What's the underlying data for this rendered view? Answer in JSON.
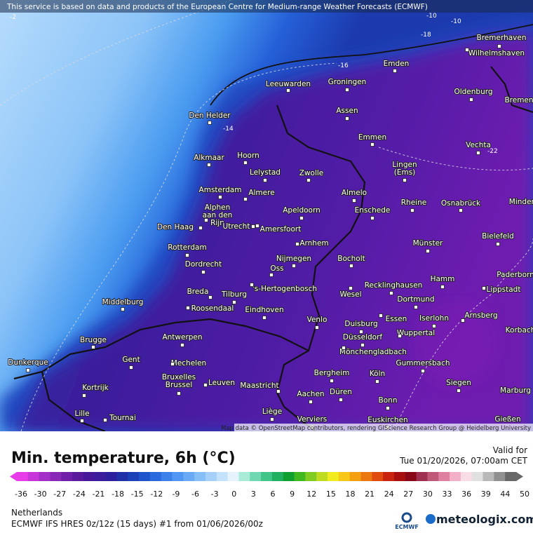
{
  "header": {
    "attribution": "This service is based on data and products of the European Centre for Medium-range Weather Forecasts (ECMWF)"
  },
  "map": {
    "credit": "Map data © OpenStreetMap contributors, rendering GIScience Research Group @ Heidelberg University",
    "contour_labels": [
      -2,
      -10,
      -10,
      -18,
      -16,
      -14,
      -22
    ],
    "cities": [
      {
        "lines": [
          "Bremerhaven"
        ]
      },
      {
        "lines": [
          "Wilhelmshaven"
        ]
      },
      {
        "lines": [
          "Emden"
        ]
      },
      {
        "lines": [
          "Oldenburg"
        ]
      },
      {
        "lines": [
          "Bremen"
        ]
      },
      {
        "lines": [
          "Leeuwarden"
        ]
      },
      {
        "lines": [
          "Groningen"
        ]
      },
      {
        "lines": [
          "Den Helder"
        ]
      },
      {
        "lines": [
          "Assen"
        ]
      },
      {
        "lines": [
          "Emmen"
        ]
      },
      {
        "lines": [
          "Vechta"
        ]
      },
      {
        "lines": [
          "Alkmaar"
        ]
      },
      {
        "lines": [
          "Hoorn"
        ]
      },
      {
        "lines": [
          "Lelystad"
        ]
      },
      {
        "lines": [
          "Zwolle"
        ]
      },
      {
        "lines": [
          "Lingen",
          "(Ems)"
        ]
      },
      {
        "lines": [
          "Amsterdam"
        ]
      },
      {
        "lines": [
          "Almere"
        ]
      },
      {
        "lines": [
          "Almelo"
        ]
      },
      {
        "lines": [
          "Rheine"
        ]
      },
      {
        "lines": [
          "Osnabrück"
        ]
      },
      {
        "lines": [
          "Minden"
        ]
      },
      {
        "lines": [
          "Alphen",
          "aan den",
          "Rijn"
        ]
      },
      {
        "lines": [
          "Apeldoorn"
        ]
      },
      {
        "lines": [
          "Enschede"
        ]
      },
      {
        "lines": [
          "Den Haag"
        ]
      },
      {
        "lines": [
          "Utrecht"
        ]
      },
      {
        "lines": [
          "Amersfoort"
        ]
      },
      {
        "lines": [
          "Bielefeld"
        ]
      },
      {
        "lines": [
          "Arnhem"
        ]
      },
      {
        "lines": [
          "Münster"
        ]
      },
      {
        "lines": [
          "Rotterdam"
        ]
      },
      {
        "lines": [
          "Nijmegen"
        ]
      },
      {
        "lines": [
          "Bocholt"
        ]
      },
      {
        "lines": [
          "Dordrecht"
        ]
      },
      {
        "lines": [
          "Oss"
        ]
      },
      {
        "lines": [
          "Paderborn"
        ]
      },
      {
        "lines": [
          "Hamm"
        ]
      },
      {
        "lines": [
          "Breda"
        ]
      },
      {
        "lines": [
          "'s-Hertogenbosch"
        ]
      },
      {
        "lines": [
          "Recklinghausen"
        ]
      },
      {
        "lines": [
          "Lippstadt"
        ]
      },
      {
        "lines": [
          "Tilburg"
        ]
      },
      {
        "lines": [
          "Wesel"
        ]
      },
      {
        "lines": [
          "Middelburg"
        ]
      },
      {
        "lines": [
          "Dortmund"
        ]
      },
      {
        "lines": [
          "Roosendaal"
        ]
      },
      {
        "lines": [
          "Eindhoven"
        ]
      },
      {
        "lines": [
          "Arnsberg"
        ]
      },
      {
        "lines": [
          "Iserlohn"
        ]
      },
      {
        "lines": [
          "Essen"
        ]
      },
      {
        "lines": [
          "Venlo"
        ]
      },
      {
        "lines": [
          "Duisburg"
        ]
      },
      {
        "lines": [
          "Korbach"
        ]
      },
      {
        "lines": [
          "Wuppertal"
        ]
      },
      {
        "lines": [
          "Brugge"
        ]
      },
      {
        "lines": [
          "Antwerpen"
        ]
      },
      {
        "lines": [
          "Düsseldorf"
        ]
      },
      {
        "lines": [
          "Mönchengladbach"
        ]
      },
      {
        "lines": [
          "Dunkerque"
        ]
      },
      {
        "lines": [
          "Gent"
        ]
      },
      {
        "lines": [
          "Mechelen"
        ]
      },
      {
        "lines": [
          "Gummersbach"
        ]
      },
      {
        "lines": [
          "Bruxelles",
          "Brussel"
        ]
      },
      {
        "lines": [
          "Leuven"
        ]
      },
      {
        "lines": [
          "Maastricht"
        ]
      },
      {
        "lines": [
          "Bergheim"
        ]
      },
      {
        "lines": [
          "Köln"
        ]
      },
      {
        "lines": [
          "Siegen"
        ]
      },
      {
        "lines": [
          "Kortrijk"
        ]
      },
      {
        "lines": [
          "Aachen"
        ]
      },
      {
        "lines": [
          "Düren"
        ]
      },
      {
        "lines": [
          "Marburg"
        ]
      },
      {
        "lines": [
          "Bonn"
        ]
      },
      {
        "lines": [
          "Lille"
        ]
      },
      {
        "lines": [
          "Liège"
        ]
      },
      {
        "lines": [
          "Tournai"
        ]
      },
      {
        "lines": [
          "Verviers"
        ]
      },
      {
        "lines": [
          "Euskirchen"
        ]
      },
      {
        "lines": [
          "Gießen"
        ]
      }
    ]
  },
  "legend": {
    "title": "Min. temperature, 6h (°C)",
    "valid_label": "Valid for",
    "valid_time": "Tue 01/20/2026, 07:00am CET",
    "colors": [
      "#e83ce8",
      "#c636d8",
      "#a42ec8",
      "#8a28b8",
      "#7020a8",
      "#5a1a9c",
      "#48189a",
      "#3a1c9c",
      "#2c209e",
      "#2030a8",
      "#1c40b8",
      "#1f55cc",
      "#2a6ade",
      "#3c80ea",
      "#5096f2",
      "#68aaf6",
      "#86bef8",
      "#a4d0fa",
      "#c4e2fc",
      "#e6f2fe",
      "#a8ecd8",
      "#70d8b0",
      "#40c488",
      "#20b060",
      "#10a030",
      "#40b820",
      "#80cc20",
      "#c0dc20",
      "#f0ec20",
      "#f8c818",
      "#f4a010",
      "#ec7810",
      "#e04c10",
      "#c82410",
      "#a81010",
      "#880818",
      "#a03050",
      "#c05878",
      "#e080a0",
      "#f4b0c8",
      "#f8dce6",
      "#e0e0e0",
      "#b8b8b8",
      "#909090",
      "#686868"
    ],
    "ticks": [
      -36,
      -30,
      -27,
      -24,
      -21,
      -18,
      -15,
      -12,
      -9,
      -6,
      -3,
      0,
      3,
      6,
      9,
      12,
      15,
      18,
      21,
      24,
      27,
      30,
      33,
      36,
      39,
      44,
      50
    ]
  },
  "footer": {
    "region": "Netherlands",
    "model": "ECMWF IFS HRES 0z/12z (15 days) #1 from  01/06/2026/00z"
  },
  "logos": {
    "ecmwf": "ECMWF",
    "site": "meteologix.com"
  }
}
